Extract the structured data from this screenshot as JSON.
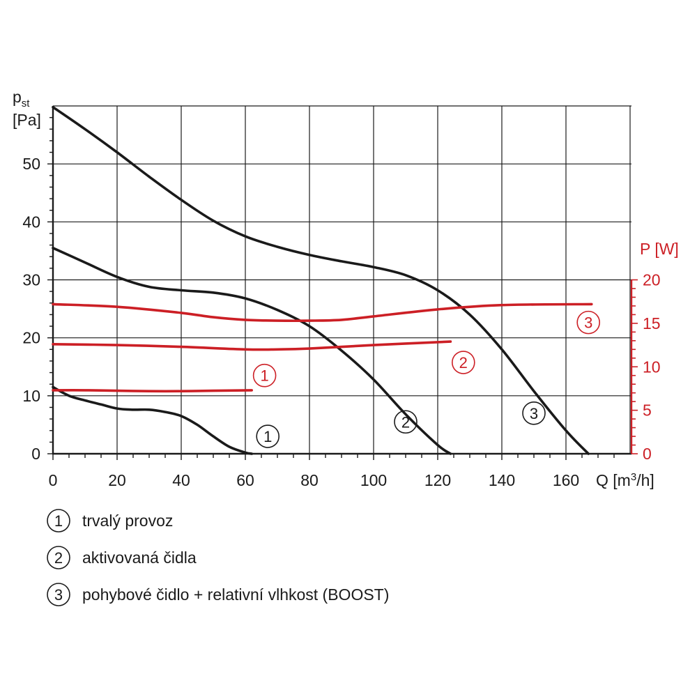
{
  "chart_data": {
    "type": "line",
    "left_axis": {
      "label_main": "p",
      "label_sub": "st",
      "unit": "[Pa]",
      "ylim": [
        0,
        60
      ],
      "ticks": [
        0,
        10,
        20,
        30,
        40,
        50
      ]
    },
    "right_axis": {
      "label": "P [W]",
      "ylim": [
        0,
        20
      ],
      "ticks": [
        0,
        5,
        10,
        15,
        20
      ]
    },
    "x_axis": {
      "label_prefix": "Q [m",
      "label_sup": "3",
      "label_suffix": "/h]",
      "xlim": [
        0,
        180
      ],
      "ticks": [
        0,
        20,
        40,
        60,
        80,
        100,
        120,
        140,
        160
      ]
    },
    "grid": true,
    "colors": {
      "pressure": "#1a1a1a",
      "power": "#cc1f25"
    },
    "pressure_series": [
      {
        "id": "1",
        "axis": "left",
        "points": [
          [
            0,
            11.5
          ],
          [
            5,
            10.0
          ],
          [
            10,
            9.2
          ],
          [
            15,
            8.5
          ],
          [
            20,
            7.8
          ],
          [
            25,
            7.6
          ],
          [
            30,
            7.6
          ],
          [
            35,
            7.2
          ],
          [
            40,
            6.5
          ],
          [
            45,
            5.0
          ],
          [
            50,
            3.0
          ],
          [
            55,
            1.2
          ],
          [
            60,
            0.2
          ],
          [
            62,
            0
          ]
        ],
        "label_at": [
          67,
          3
        ]
      },
      {
        "id": "2",
        "axis": "left",
        "points": [
          [
            0,
            35.5
          ],
          [
            10,
            33.0
          ],
          [
            20,
            30.5
          ],
          [
            30,
            28.8
          ],
          [
            40,
            28.2
          ],
          [
            50,
            27.8
          ],
          [
            60,
            26.8
          ],
          [
            70,
            24.8
          ],
          [
            80,
            22.0
          ],
          [
            90,
            17.8
          ],
          [
            100,
            12.8
          ],
          [
            110,
            6.8
          ],
          [
            120,
            1.5
          ],
          [
            124,
            0
          ]
        ],
        "label_at": [
          110,
          5.5
        ]
      },
      {
        "id": "3",
        "axis": "left",
        "points": [
          [
            0,
            59.8
          ],
          [
            10,
            56.0
          ],
          [
            20,
            52.0
          ],
          [
            30,
            47.8
          ],
          [
            40,
            43.8
          ],
          [
            50,
            40.2
          ],
          [
            60,
            37.5
          ],
          [
            70,
            35.7
          ],
          [
            80,
            34.3
          ],
          [
            90,
            33.2
          ],
          [
            100,
            32.2
          ],
          [
            110,
            30.8
          ],
          [
            120,
            28.2
          ],
          [
            130,
            24.0
          ],
          [
            140,
            18.0
          ],
          [
            150,
            10.8
          ],
          [
            160,
            4.0
          ],
          [
            167,
            0
          ]
        ],
        "label_at": [
          150,
          7
        ]
      }
    ],
    "power_series": [
      {
        "id": "1",
        "axis": "right",
        "points": [
          [
            0,
            7.3
          ],
          [
            10,
            7.3
          ],
          [
            20,
            7.25
          ],
          [
            30,
            7.2
          ],
          [
            40,
            7.2
          ],
          [
            50,
            7.25
          ],
          [
            62,
            7.3
          ]
        ],
        "label_at": [
          66,
          9
        ]
      },
      {
        "id": "2",
        "axis": "right",
        "points": [
          [
            0,
            12.6
          ],
          [
            20,
            12.5
          ],
          [
            40,
            12.3
          ],
          [
            60,
            12.0
          ],
          [
            70,
            12.0
          ],
          [
            80,
            12.1
          ],
          [
            100,
            12.5
          ],
          [
            124,
            12.9
          ]
        ],
        "label_at": [
          128,
          10.5
        ]
      },
      {
        "id": "3",
        "axis": "right",
        "points": [
          [
            0,
            17.2
          ],
          [
            20,
            16.9
          ],
          [
            40,
            16.2
          ],
          [
            50,
            15.7
          ],
          [
            60,
            15.4
          ],
          [
            70,
            15.3
          ],
          [
            80,
            15.3
          ],
          [
            90,
            15.4
          ],
          [
            100,
            15.8
          ],
          [
            120,
            16.6
          ],
          [
            140,
            17.1
          ],
          [
            168,
            17.2
          ]
        ],
        "label_at": [
          167,
          15.1
        ]
      }
    ]
  },
  "legend": [
    {
      "marker": "1",
      "text": "trvalý provoz"
    },
    {
      "marker": "2",
      "text": "aktivovaná čidla"
    },
    {
      "marker": "3",
      "text": "pohybové čidlo + relativní vlhkost (BOOST)"
    }
  ]
}
